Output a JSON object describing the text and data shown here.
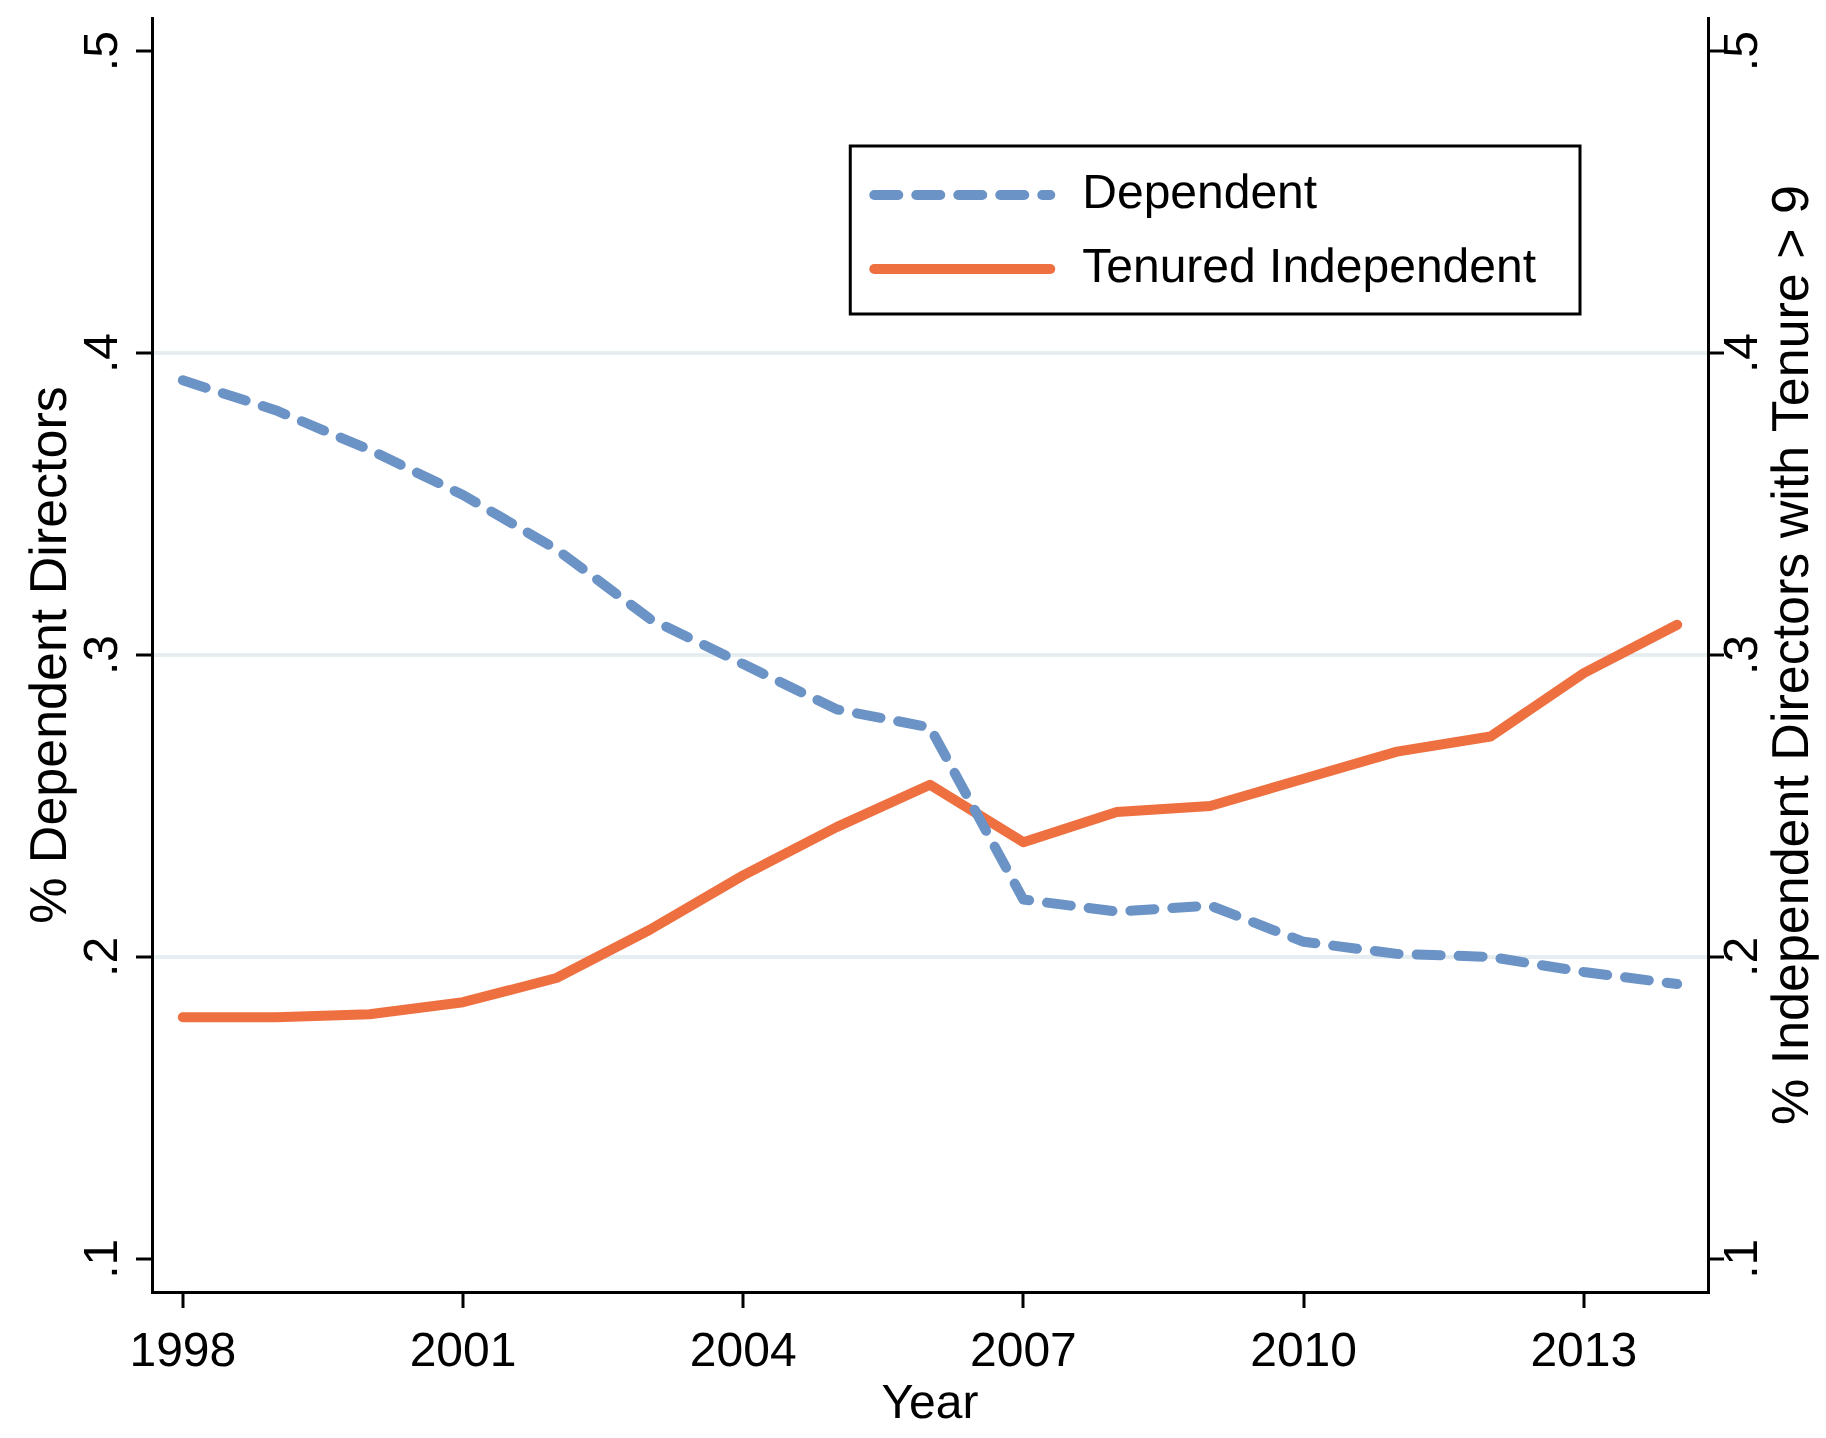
{
  "chart_data": {
    "type": "line",
    "xlabel": "Year",
    "ylabel": "% Dependent Directors",
    "y2label": "% Independent Directors with Tenure > 9",
    "x": [
      1998,
      1999,
      2000,
      2001,
      2002,
      2003,
      2004,
      2005,
      2006,
      2007,
      2008,
      2009,
      2010,
      2011,
      2012,
      2013,
      2014
    ],
    "series": [
      {
        "name": "Dependent",
        "color": "#6b93c6",
        "line_style": "dashed",
        "values": [
          0.391,
          0.381,
          0.368,
          0.353,
          0.335,
          0.312,
          0.297,
          0.282,
          0.276,
          0.219,
          0.215,
          0.217,
          0.205,
          0.201,
          0.2,
          0.195,
          0.191
        ]
      },
      {
        "name": "Tenured Independent",
        "color": "#ee7040",
        "line_style": "solid",
        "axis": "y2",
        "values": [
          0.18,
          0.18,
          0.181,
          0.185,
          0.193,
          0.209,
          0.227,
          0.243,
          0.257,
          0.238,
          0.248,
          0.25,
          0.259,
          0.268,
          0.273,
          0.294,
          0.31
        ]
      }
    ],
    "xlim": [
      1997.67,
      2014.33
    ],
    "xticks": [
      1998,
      2001,
      2004,
      2007,
      2010,
      2013
    ],
    "ylim": [
      0.089,
      0.511
    ],
    "yticks": [
      {
        "value": 0.1,
        "label": ".1"
      },
      {
        "value": 0.2,
        "label": ".2"
      },
      {
        "value": 0.3,
        "label": ".3"
      },
      {
        "value": 0.4,
        "label": ".4"
      },
      {
        "value": 0.5,
        "label": ".5"
      }
    ],
    "y2lim": [
      0.089,
      0.511
    ],
    "y2ticks": [
      {
        "value": 0.1,
        "label": ".1"
      },
      {
        "value": 0.2,
        "label": ".2"
      },
      {
        "value": 0.3,
        "label": ".3"
      },
      {
        "value": 0.4,
        "label": ".4"
      },
      {
        "value": 0.5,
        "label": ".5"
      }
    ],
    "grid": "y",
    "legend": "top right"
  }
}
